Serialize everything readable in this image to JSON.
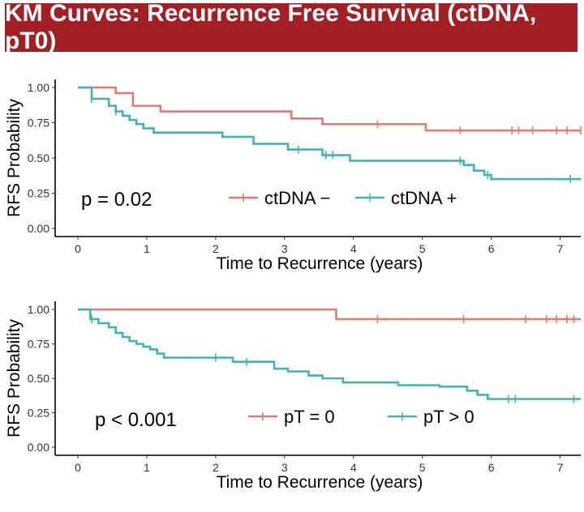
{
  "banner": {
    "title": "KM Curves: Recurrence Free Survival (ctDNA, pT0)"
  },
  "colors": {
    "banner_bg": "#a31f24",
    "series_neg": "#e07b6f",
    "series_pos": "#3fb3b6"
  },
  "chart_data": [
    {
      "type": "line",
      "step": true,
      "xlabel": "Time to Recurrence (years)",
      "ylabel": "RFS Probability",
      "xlim": [
        0,
        7.3
      ],
      "ylim": [
        0,
        1
      ],
      "xticks": [
        "0",
        "1",
        "2",
        "3",
        "4",
        "5",
        "6",
        "7"
      ],
      "yticks": [
        "0.00",
        "0.25",
        "0.50",
        "0.75",
        "1.00"
      ],
      "grid": false,
      "annotation": "p = 0.02",
      "legend": {
        "position": "bottom-center",
        "entries": [
          "ctDNA −",
          "ctDNA +"
        ]
      },
      "series": [
        {
          "name": "ctDNA −",
          "color": "#e07b6f",
          "x": [
            0,
            0.55,
            0.8,
            1.2,
            3.1,
            3.55,
            5.05,
            7.3
          ],
          "y": [
            1.0,
            0.96,
            0.87,
            0.83,
            0.78,
            0.74,
            0.695,
            0.695
          ],
          "censor": [
            4.35,
            5.55,
            6.3,
            6.4,
            6.6,
            6.95,
            7.1,
            7.3
          ],
          "censor_y": [
            0.74,
            0.695,
            0.695,
            0.695,
            0.695,
            0.695,
            0.695,
            0.695
          ]
        },
        {
          "name": "ctDNA +",
          "color": "#3fb3b6",
          "x": [
            0,
            0.2,
            0.45,
            0.55,
            0.65,
            0.75,
            0.85,
            0.95,
            1.1,
            1.6,
            2.1,
            2.55,
            3.05,
            3.55,
            3.95,
            5.6,
            5.75,
            5.9,
            6.0,
            7.3
          ],
          "y": [
            1.0,
            0.92,
            0.87,
            0.83,
            0.8,
            0.77,
            0.74,
            0.71,
            0.68,
            0.68,
            0.65,
            0.6,
            0.56,
            0.52,
            0.48,
            0.45,
            0.41,
            0.38,
            0.35,
            0.35
          ],
          "censor": [
            0.2,
            0.55,
            3.2,
            3.6,
            3.7,
            5.55,
            5.95,
            7.15
          ],
          "censor_y": [
            0.92,
            0.83,
            0.56,
            0.52,
            0.52,
            0.48,
            0.38,
            0.35
          ]
        }
      ]
    },
    {
      "type": "line",
      "step": true,
      "xlabel": "Time to Recurrence (years)",
      "ylabel": "RFS Probability",
      "xlim": [
        0,
        7.3
      ],
      "ylim": [
        0,
        1
      ],
      "xticks": [
        "0",
        "1",
        "2",
        "3",
        "4",
        "5",
        "6",
        "7"
      ],
      "yticks": [
        "0.00",
        "0.25",
        "0.50",
        "0.75",
        "1.00"
      ],
      "grid": false,
      "annotation": "p < 0.001",
      "legend": {
        "position": "bottom-center",
        "entries": [
          "pT = 0",
          "pT > 0"
        ]
      },
      "series": [
        {
          "name": "pT = 0",
          "color": "#e07b6f",
          "x": [
            0,
            3.75,
            7.3
          ],
          "y": [
            1.0,
            0.93,
            0.93
          ],
          "censor": [
            4.35,
            5.6,
            6.5,
            6.8,
            6.95,
            7.1,
            7.2
          ],
          "censor_y": [
            0.93,
            0.93,
            0.93,
            0.93,
            0.93,
            0.93,
            0.93
          ]
        },
        {
          "name": "pT > 0",
          "color": "#3fb3b6",
          "x": [
            0,
            0.18,
            0.3,
            0.45,
            0.55,
            0.65,
            0.75,
            0.85,
            0.95,
            1.05,
            1.15,
            1.25,
            2.25,
            2.85,
            3.05,
            3.35,
            3.55,
            3.85,
            4.65,
            5.25,
            5.65,
            5.8,
            5.95,
            7.3
          ],
          "y": [
            1.0,
            0.93,
            0.9,
            0.87,
            0.83,
            0.8,
            0.77,
            0.75,
            0.73,
            0.71,
            0.68,
            0.65,
            0.62,
            0.57,
            0.55,
            0.52,
            0.5,
            0.47,
            0.45,
            0.44,
            0.41,
            0.38,
            0.35,
            0.35
          ],
          "censor": [
            0.2,
            2.0,
            2.45,
            6.25,
            6.35,
            7.2
          ],
          "censor_y": [
            0.93,
            0.65,
            0.62,
            0.35,
            0.35,
            0.35
          ]
        }
      ]
    }
  ]
}
